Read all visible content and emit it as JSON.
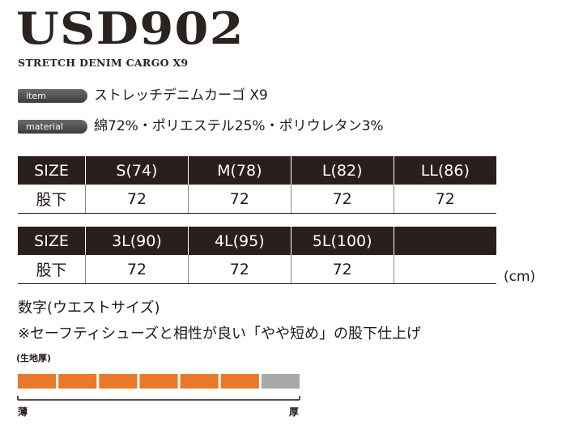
{
  "header": {
    "title": "USD902",
    "subtitle": "STRETCH DENIM CARGO X9"
  },
  "specs": [
    {
      "label": "item",
      "value": "ストレッチデニムカーゴ X9"
    },
    {
      "label": "material",
      "value": "綿72%・ポリエステル25%・ポリウレタン3%"
    }
  ],
  "tables": [
    {
      "header": [
        "SIZE",
        "S(74)",
        "M(78)",
        "L(82)",
        "LL(86)"
      ],
      "row": [
        "股下",
        72,
        72,
        72,
        72
      ]
    },
    {
      "header": [
        "SIZE",
        "3L(90)",
        "4L(95)",
        "5L(100)"
      ],
      "row": [
        "股下",
        72,
        72,
        72
      ]
    }
  ],
  "unit": "(cm)",
  "notes": [
    "数字(ウエストサイズ)",
    "※セーフティシューズと相性が良い「やや短め」の股下仕上げ"
  ],
  "thickness": {
    "label": "(生地厚)",
    "level": 6,
    "segments": 7,
    "min_label": "薄",
    "max_label": "厚"
  }
}
